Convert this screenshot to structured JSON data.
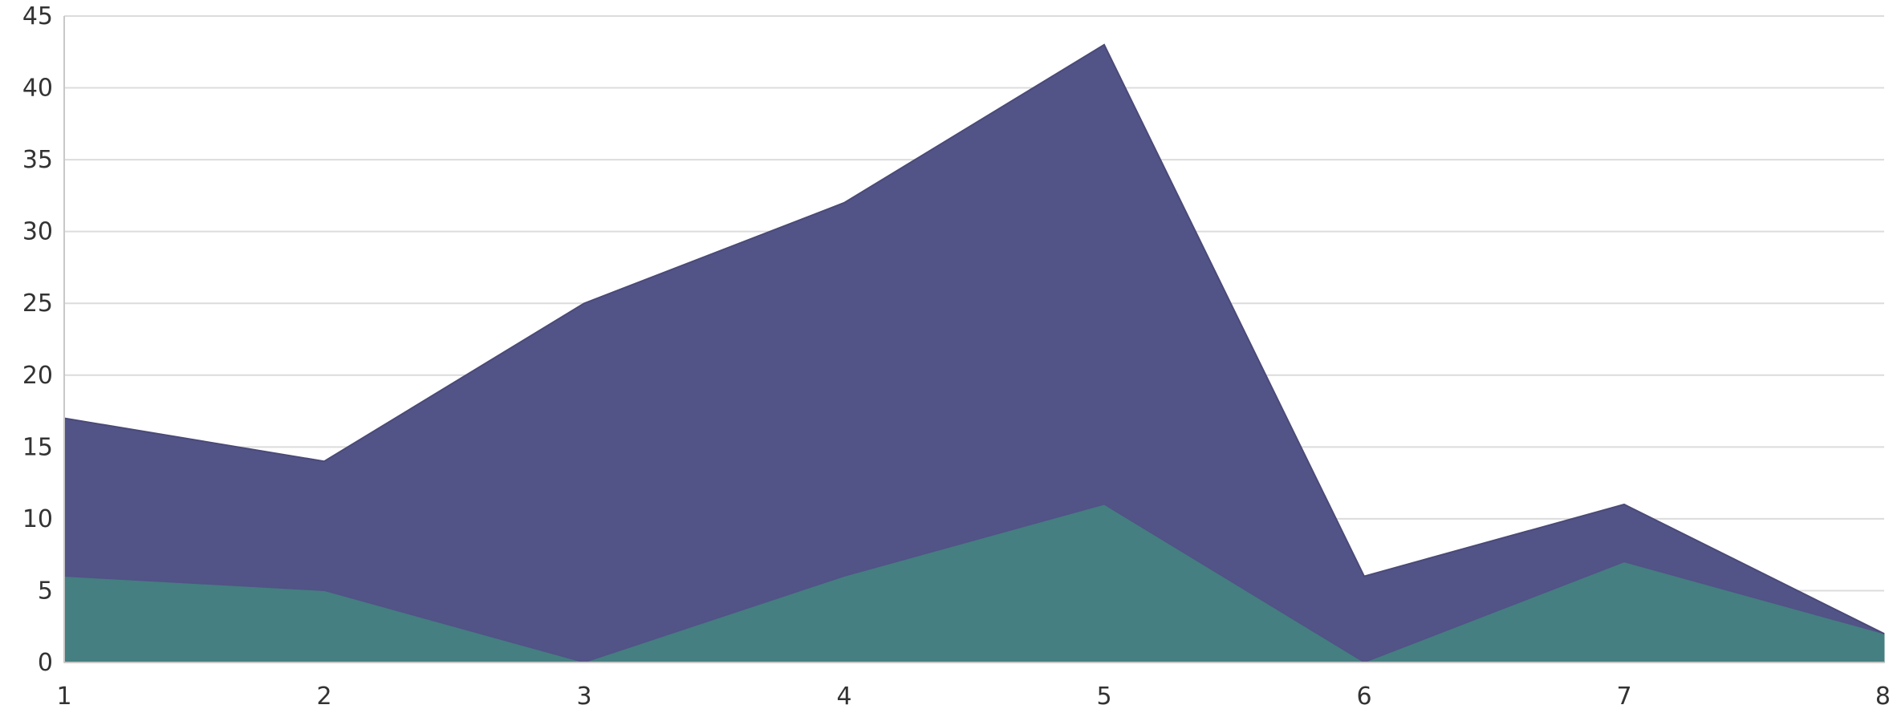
{
  "chart_data": {
    "type": "area",
    "stacked": true,
    "x": [
      1,
      2,
      3,
      4,
      5,
      6,
      7,
      8
    ],
    "series": [
      {
        "values": [
          6,
          5,
          0,
          6,
          11,
          0,
          7,
          2
        ],
        "color": "#457f81"
      },
      {
        "values": [
          11,
          9,
          25,
          26,
          32,
          6,
          4,
          0
        ],
        "color": "#525387"
      }
    ],
    "stacked_totals": [
      17,
      14,
      25,
      32,
      43,
      6,
      11,
      2
    ],
    "ylim": [
      0,
      45
    ],
    "y_ticks": [
      0,
      5,
      10,
      15,
      20,
      25,
      30,
      35,
      40,
      45
    ],
    "x_ticks": [
      1,
      2,
      3,
      4,
      5,
      6,
      7,
      8
    ],
    "grid": true,
    "legend": "none",
    "title": "",
    "xlabel": "",
    "ylabel": ""
  }
}
